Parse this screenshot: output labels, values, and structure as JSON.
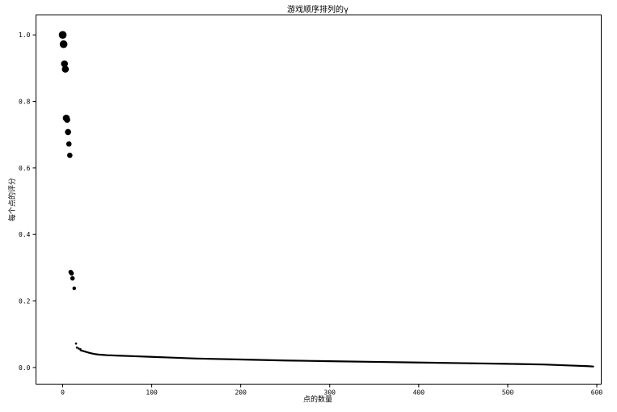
{
  "chart_data": {
    "type": "scatter",
    "title": "游戏顺序排列的γ",
    "xlabel": "点的数量",
    "ylabel": "每个点的评分",
    "xlim": [
      -30,
      605
    ],
    "ylim": [
      -0.05,
      1.06
    ],
    "xticks": [
      0,
      100,
      200,
      300,
      400,
      500,
      600
    ],
    "xtick_labels": [
      "0",
      "100",
      "200",
      "300",
      "400",
      "500",
      "600"
    ],
    "yticks": [
      0.0,
      0.2,
      0.4,
      0.6,
      0.8,
      1.0
    ],
    "ytick_labels": [
      "0.0",
      "0.2",
      "0.4",
      "0.6",
      "0.8",
      "1.0"
    ],
    "grid": false,
    "marker_color": "#000000",
    "points": [
      {
        "x": 0,
        "y": 1.0,
        "size": 9
      },
      {
        "x": 1,
        "y": 0.972,
        "size": 9
      },
      {
        "x": 2,
        "y": 0.913,
        "size": 8
      },
      {
        "x": 3,
        "y": 0.897,
        "size": 8
      },
      {
        "x": 4,
        "y": 0.75,
        "size": 8
      },
      {
        "x": 5,
        "y": 0.745,
        "size": 7
      },
      {
        "x": 6,
        "y": 0.708,
        "size": 7
      },
      {
        "x": 7,
        "y": 0.672,
        "size": 6
      },
      {
        "x": 8,
        "y": 0.638,
        "size": 6
      },
      {
        "x": 9,
        "y": 0.287,
        "size": 5
      },
      {
        "x": 10,
        "y": 0.283,
        "size": 5
      },
      {
        "x": 11,
        "y": 0.268,
        "size": 5
      },
      {
        "x": 13,
        "y": 0.238,
        "size": 4
      },
      {
        "x": 15,
        "y": 0.072,
        "size": 2
      },
      {
        "x": 16,
        "y": 0.06,
        "size": 2
      },
      {
        "x": 18,
        "y": 0.057,
        "size": 2
      },
      {
        "x": 20,
        "y": 0.055,
        "size": 2
      }
    ],
    "tail": {
      "x": [
        20,
        25,
        30,
        35,
        40,
        50,
        60,
        80,
        100,
        120,
        150,
        200,
        250,
        300,
        350,
        400,
        450,
        500,
        540,
        570,
        590,
        596
      ],
      "y": [
        0.052,
        0.048,
        0.044,
        0.041,
        0.039,
        0.037,
        0.036,
        0.034,
        0.032,
        0.03,
        0.027,
        0.024,
        0.021,
        0.019,
        0.017,
        0.015,
        0.013,
        0.011,
        0.009,
        0.006,
        0.004,
        0.003
      ]
    }
  }
}
